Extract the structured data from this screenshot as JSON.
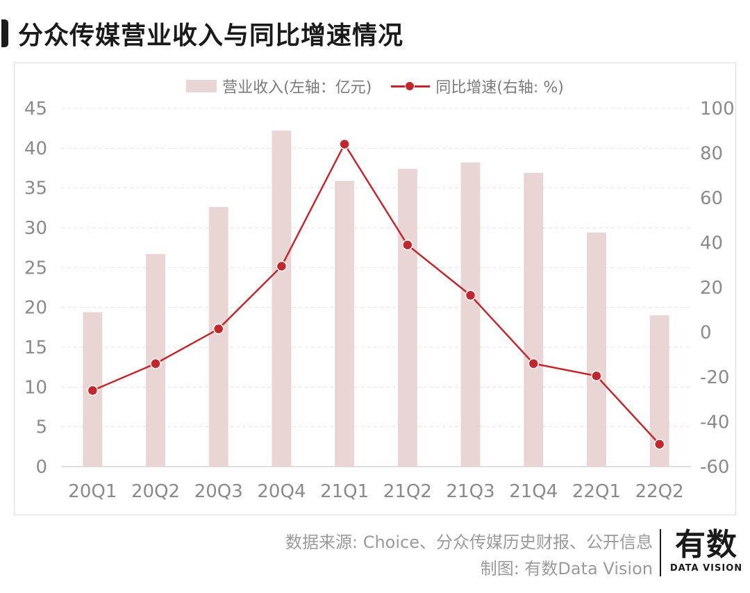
{
  "title": "分众传媒营业收入与同比增速情况",
  "legend": {
    "bar_label": "营业收入(左轴：亿元)",
    "line_label": "同比增速(右轴: %)"
  },
  "colors": {
    "bar": "#ead5d5",
    "line": "#c0282d",
    "grid": "#e3e3e3",
    "axis_text": "#8a8a8a"
  },
  "chart_data": {
    "type": "bar",
    "categories": [
      "20Q1",
      "20Q2",
      "20Q3",
      "20Q4",
      "21Q1",
      "21Q2",
      "21Q3",
      "21Q4",
      "22Q1",
      "22Q2"
    ],
    "series": [
      {
        "name": "营业收入(左轴：亿元)",
        "type": "bar",
        "axis": "left",
        "values": [
          19.4,
          26.7,
          32.6,
          42.2,
          35.9,
          37.4,
          38.2,
          36.9,
          29.4,
          19.0
        ]
      },
      {
        "name": "同比增速(右轴: %)",
        "type": "line",
        "axis": "right",
        "values": [
          -26,
          -14,
          1.5,
          29.5,
          84,
          39,
          16.5,
          -14,
          -19.5,
          -50
        ]
      }
    ],
    "left_axis": {
      "ylim": [
        0,
        45
      ],
      "ticks": [
        "0",
        "5",
        "10",
        "15",
        "20",
        "25",
        "30",
        "35",
        "40",
        "45"
      ]
    },
    "right_axis": {
      "ylim": [
        -60,
        100
      ],
      "ticks": [
        "-60",
        "-40",
        "-20",
        "0",
        "20",
        "40",
        "60",
        "80",
        "100"
      ]
    },
    "grid": true,
    "legend_position": "top-center"
  },
  "footer": {
    "source": "数据来源: Choice、分众传媒历史财报、公开信息",
    "made_by": "制图: 有数Data Vision"
  },
  "logo": {
    "cn": "有数",
    "en": "DATA VISION"
  }
}
